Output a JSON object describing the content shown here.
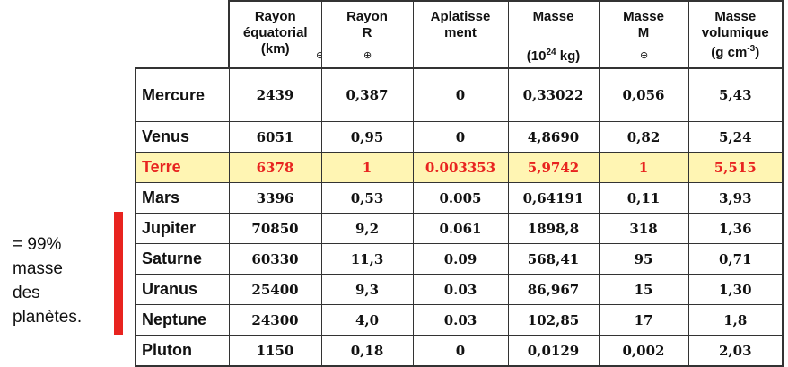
{
  "side_note": {
    "lines": [
      "= 99%",
      "masse",
      "des",
      "planètes."
    ]
  },
  "columns": [
    {
      "lines": [
        "Rayon",
        "équatorial",
        "(km)"
      ],
      "symbol": "⊕"
    },
    {
      "lines": [
        "Rayon",
        "R"
      ],
      "symbol": "⊕"
    },
    {
      "lines": [
        "Aplatisse",
        "ment"
      ],
      "symbol": ""
    },
    {
      "lines": [
        "Masse"
      ],
      "unit_base": "(10",
      "unit_exp": "24",
      "unit_tail": " kg)"
    },
    {
      "lines": [
        "Masse",
        "M"
      ],
      "symbol": "⊕"
    },
    {
      "lines": [
        "Masse",
        "volumique"
      ],
      "unit_base": "(g cm",
      "unit_exp": "-3",
      "unit_tail": ")"
    }
  ],
  "rows": [
    {
      "name": "Mercure",
      "values": [
        "2439",
        "0,387",
        "0",
        "0,33022",
        "0,056",
        "5,43"
      ]
    },
    {
      "name": "Venus",
      "values": [
        "6051",
        "0,95",
        "0",
        "4,8690",
        "0,82",
        "5,24"
      ]
    },
    {
      "name": "Terre",
      "values": [
        "6378",
        "1",
        "0.003353",
        "5,9742",
        "1",
        "5,515"
      ]
    },
    {
      "name": "Mars",
      "values": [
        "3396",
        "0,53",
        "0.005",
        "0,64191",
        "0,11",
        "3,93"
      ]
    },
    {
      "name": "Jupiter",
      "values": [
        "70850",
        "9,2",
        "0.061",
        "1898,8",
        "318",
        "1,36"
      ]
    },
    {
      "name": "Saturne",
      "values": [
        "60330",
        "11,3",
        "0.09",
        "568,41",
        "95",
        "0,71"
      ]
    },
    {
      "name": "Uranus",
      "values": [
        "25400",
        "9,3",
        "0.03",
        "86,967",
        "15",
        "1,30"
      ]
    },
    {
      "name": "Neptune",
      "values": [
        "24300",
        "4,0",
        "0.03",
        "102,85",
        "17",
        "1,8"
      ]
    },
    {
      "name": "Pluton",
      "values": [
        "1150",
        "0,18",
        "0",
        "0,0129",
        "0,002",
        "2,03"
      ]
    }
  ],
  "highlight_color": "#fff5b3",
  "highlight_text_color": "#e8231f",
  "bracket_color": "#e8231f"
}
